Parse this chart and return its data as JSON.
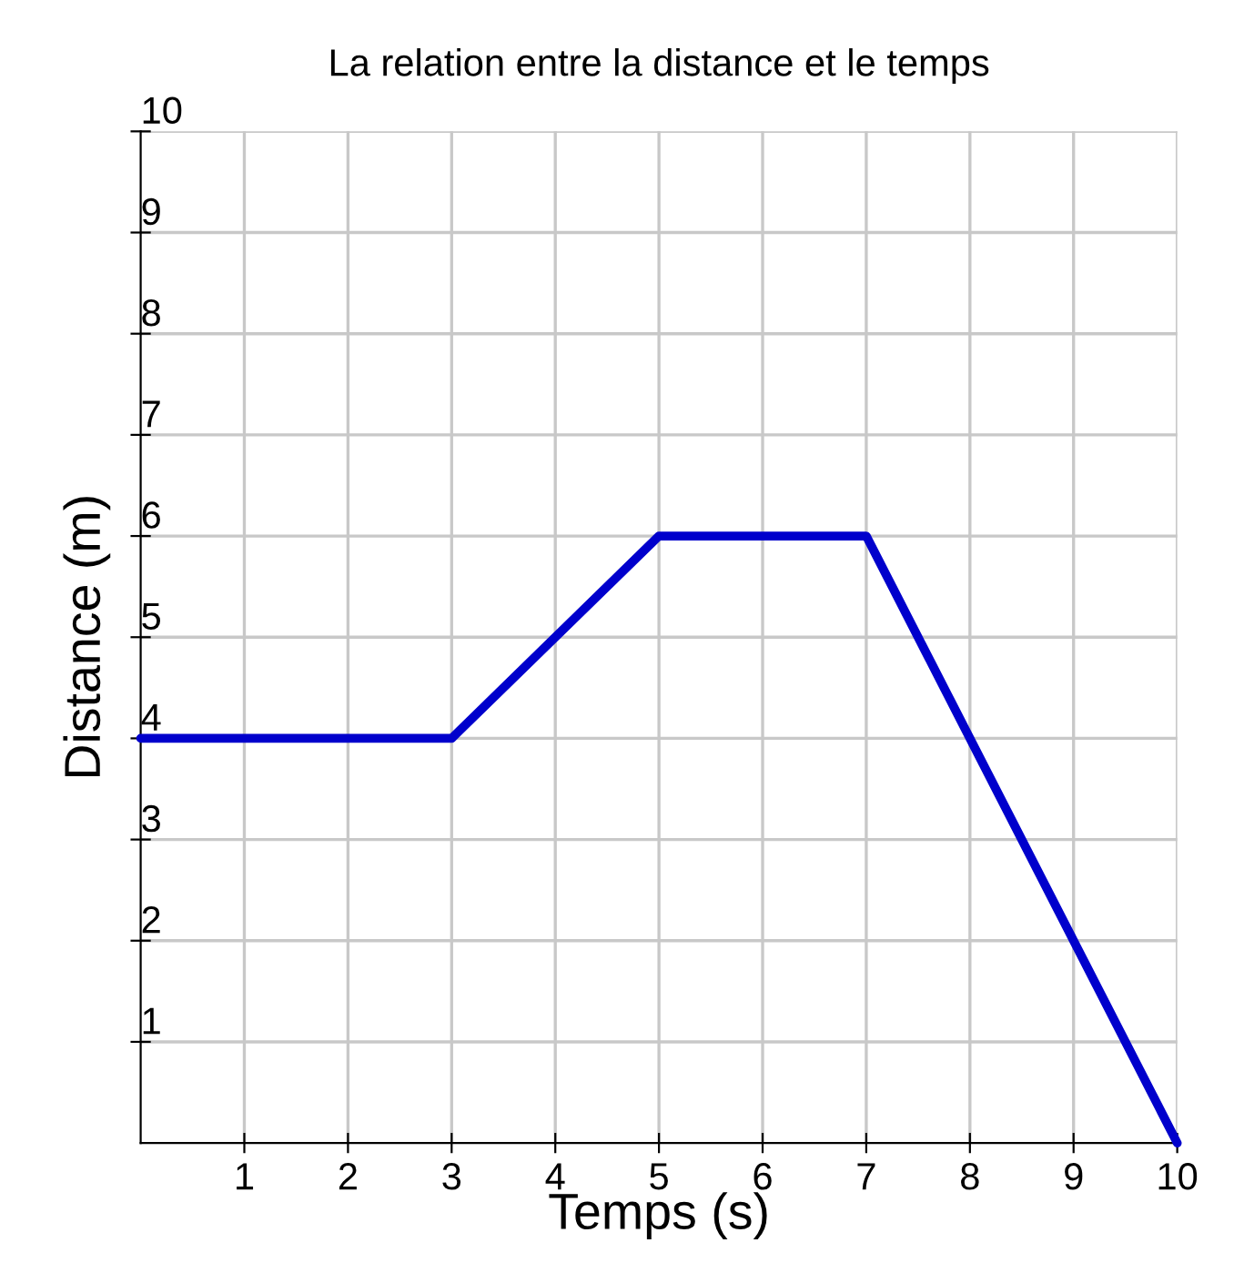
{
  "chart_data": {
    "type": "line",
    "title": "La relation entre la distance et le temps",
    "xlabel": "Temps (s)",
    "ylabel": "Distance (m)",
    "x": [
      0,
      3,
      5,
      7,
      10
    ],
    "series": [
      {
        "color": "#0000cc",
        "values": [
          4,
          4,
          6,
          6,
          0
        ]
      }
    ],
    "xlim": [
      0,
      10
    ],
    "ylim": [
      0,
      10
    ],
    "xticks": [
      1,
      2,
      3,
      4,
      5,
      6,
      7,
      8,
      9,
      10
    ],
    "yticks": [
      1,
      2,
      3,
      4,
      5,
      6,
      7,
      8,
      9,
      10
    ],
    "grid": true,
    "line_style": "solid",
    "marker": "none"
  }
}
